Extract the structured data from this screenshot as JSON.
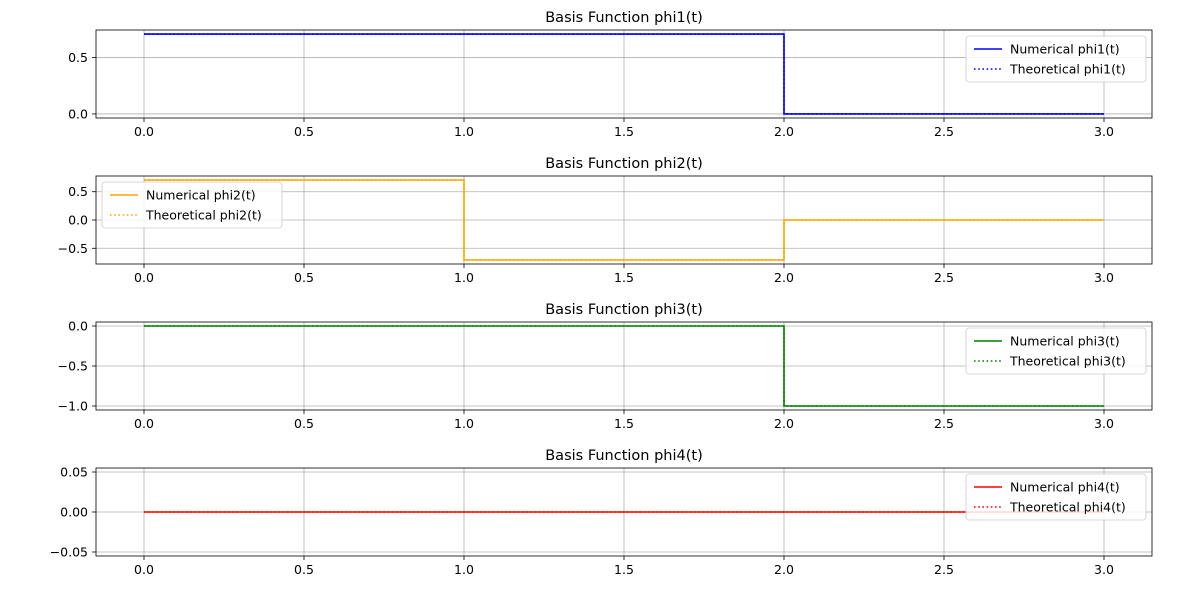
{
  "chart_data": [
    {
      "type": "line",
      "title": "Basis Function phi1(t)",
      "xlabel": "",
      "ylabel": "",
      "xlim": [
        -0.15,
        3.15
      ],
      "ylim": [
        -0.036,
        0.743
      ],
      "xticks": [
        0.0,
        0.5,
        1.0,
        1.5,
        2.0,
        2.5,
        3.0
      ],
      "xtick_labels": [
        "0.0",
        "0.5",
        "1.0",
        "1.5",
        "2.0",
        "2.5",
        "3.0"
      ],
      "yticks": [
        0.0,
        0.5
      ],
      "ytick_labels": [
        "0.0",
        "0.5"
      ],
      "grid": true,
      "legend_position": "upper right",
      "series": [
        {
          "name": "Numerical phi1(t)",
          "style": "solid",
          "color": "#0000ff",
          "x": [
            0,
            2,
            2,
            3
          ],
          "y": [
            0.7071,
            0.7071,
            0,
            0
          ]
        },
        {
          "name": "Theoretical phi1(t)",
          "style": "dotted",
          "color": "#0000ff",
          "x": [
            0,
            2,
            2,
            3
          ],
          "y": [
            0.7071,
            0.7071,
            0,
            0
          ]
        }
      ]
    },
    {
      "type": "line",
      "title": "Basis Function phi2(t)",
      "xlabel": "",
      "ylabel": "",
      "xlim": [
        -0.15,
        3.15
      ],
      "ylim": [
        -0.778,
        0.778
      ],
      "xticks": [
        0.0,
        0.5,
        1.0,
        1.5,
        2.0,
        2.5,
        3.0
      ],
      "xtick_labels": [
        "0.0",
        "0.5",
        "1.0",
        "1.5",
        "2.0",
        "2.5",
        "3.0"
      ],
      "yticks": [
        -0.5,
        0.0,
        0.5
      ],
      "ytick_labels": [
        "−0.5",
        "0.0",
        "0.5"
      ],
      "grid": true,
      "legend_position": "upper left",
      "series": [
        {
          "name": "Numerical phi2(t)",
          "style": "solid",
          "color": "#ffa500",
          "x": [
            0,
            1,
            1,
            2,
            2,
            3
          ],
          "y": [
            0.7071,
            0.7071,
            -0.7071,
            -0.7071,
            0,
            0
          ]
        },
        {
          "name": "Theoretical phi2(t)",
          "style": "dotted",
          "color": "#ffa500",
          "x": [
            0,
            1,
            1,
            2,
            2,
            3
          ],
          "y": [
            0.7071,
            0.7071,
            -0.7071,
            -0.7071,
            0,
            0
          ]
        }
      ]
    },
    {
      "type": "line",
      "title": "Basis Function phi3(t)",
      "xlabel": "",
      "ylabel": "",
      "xlim": [
        -0.15,
        3.15
      ],
      "ylim": [
        -1.05,
        0.05
      ],
      "xticks": [
        0.0,
        0.5,
        1.0,
        1.5,
        2.0,
        2.5,
        3.0
      ],
      "xtick_labels": [
        "0.0",
        "0.5",
        "1.0",
        "1.5",
        "2.0",
        "2.5",
        "3.0"
      ],
      "yticks": [
        -1.0,
        -0.5,
        0.0
      ],
      "ytick_labels": [
        "−1.0",
        "−0.5",
        "0.0"
      ],
      "grid": true,
      "legend_position": "upper right",
      "series": [
        {
          "name": "Numerical phi3(t)",
          "style": "solid",
          "color": "#008000",
          "x": [
            0,
            2,
            2,
            3
          ],
          "y": [
            0,
            0,
            -1,
            -1
          ]
        },
        {
          "name": "Theoretical phi3(t)",
          "style": "dotted",
          "color": "#008000",
          "x": [
            0,
            2,
            2,
            3
          ],
          "y": [
            0,
            0,
            -1,
            -1
          ]
        }
      ]
    },
    {
      "type": "line",
      "title": "Basis Function phi4(t)",
      "xlabel": "",
      "ylabel": "",
      "xlim": [
        -0.15,
        3.15
      ],
      "ylim": [
        -0.055,
        0.055
      ],
      "xticks": [
        0.0,
        0.5,
        1.0,
        1.5,
        2.0,
        2.5,
        3.0
      ],
      "xtick_labels": [
        "0.0",
        "0.5",
        "1.0",
        "1.5",
        "2.0",
        "2.5",
        "3.0"
      ],
      "yticks": [
        -0.05,
        0.0,
        0.05
      ],
      "ytick_labels": [
        "−0.05",
        "0.00",
        "0.05"
      ],
      "grid": true,
      "legend_position": "upper right",
      "series": [
        {
          "name": "Numerical phi4(t)",
          "style": "solid",
          "color": "#ff0000",
          "x": [
            0,
            3
          ],
          "y": [
            0,
            0
          ]
        },
        {
          "name": "Theoretical phi4(t)",
          "style": "dotted",
          "color": "#ff0000",
          "x": [
            0,
            3
          ],
          "y": [
            0,
            0
          ]
        }
      ]
    }
  ]
}
